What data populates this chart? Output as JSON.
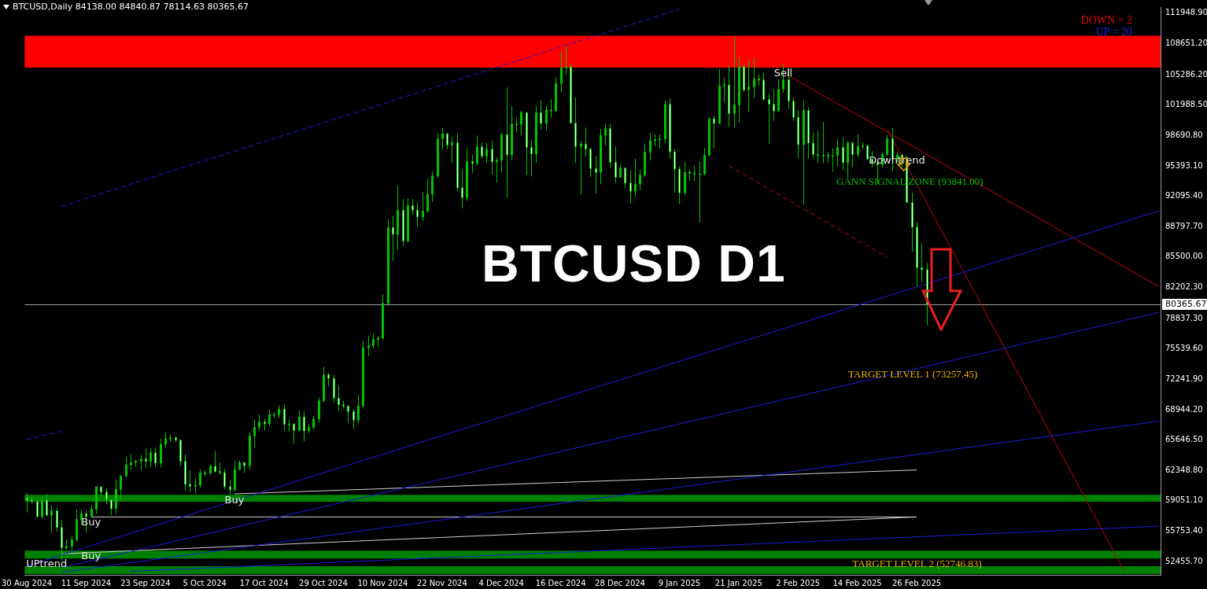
{
  "chart_data": {
    "type": "candlestick",
    "title": "BTCUSD,Daily 84138.00 84840.87 78114.63 80365.67",
    "xlim": [
      "2024-08-29T14:00",
      "2025-04-16T08:00"
    ],
    "xticks": [
      {
        "value": "2024-08-30",
        "label": "30 Aug 2024"
      },
      {
        "value": "2024-09-11",
        "label": "11 Sep 2024"
      },
      {
        "value": "2024-09-23",
        "label": "23 Sep 2024"
      },
      {
        "value": "2024-10-05",
        "label": "5 Oct 2024"
      },
      {
        "value": "2024-10-17",
        "label": "17 Oct 2024"
      },
      {
        "value": "2024-10-29",
        "label": "29 Oct 2024"
      },
      {
        "value": "2024-11-10",
        "label": "10 Nov 2024"
      },
      {
        "value": "2024-11-22",
        "label": "22 Nov 2024"
      },
      {
        "value": "2024-12-04",
        "label": "4 Dec 2024"
      },
      {
        "value": "2024-12-16",
        "label": "16 Dec 2024"
      },
      {
        "value": "2024-12-28",
        "label": "28 Dec 2024"
      },
      {
        "value": "2025-01-09",
        "label": "9 Jan 2025"
      },
      {
        "value": "2025-01-21",
        "label": "21 Jan 2025"
      },
      {
        "value": "2025-02-02",
        "label": "2 Feb 2025"
      },
      {
        "value": "2025-02-14",
        "label": "14 Feb 2025"
      },
      {
        "value": "2025-02-26",
        "label": "26 Feb 2025"
      }
    ],
    "ylim": [
      51020,
      112620
    ],
    "yticks": [
      {
        "value": 111948.9,
        "label": "111948.90"
      },
      {
        "value": 108651.2,
        "label": "108651.20"
      },
      {
        "value": 105286.2,
        "label": "105286.20"
      },
      {
        "value": 101988.5,
        "label": "101988.50"
      },
      {
        "value": 98690.8,
        "label": "98690.80"
      },
      {
        "value": 95393.1,
        "label": "95393.10"
      },
      {
        "value": 92095.4,
        "label": "92095.40"
      },
      {
        "value": 88797.7,
        "label": "88797.70"
      },
      {
        "value": 85500,
        "label": "85500.00"
      },
      {
        "value": 82202.3,
        "label": "82202.30"
      },
      {
        "value": 78837.3,
        "label": "78837.30"
      },
      {
        "value": 75539.6,
        "label": "75539.60"
      },
      {
        "value": 72241.9,
        "label": "72241.90"
      },
      {
        "value": 68944.2,
        "label": "68944.20"
      },
      {
        "value": 65646.5,
        "label": "65646.50"
      },
      {
        "value": 62348.8,
        "label": "62348.80"
      },
      {
        "value": 59051.1,
        "label": "59051.10"
      },
      {
        "value": 55753.4,
        "label": "55753.40"
      },
      {
        "value": 52455.7,
        "label": "52455.70"
      }
    ],
    "series": [
      {
        "color": "#00c000",
        "x": [
          "2024-08-30",
          "2024-08-31",
          "2024-09-01",
          "2024-09-02",
          "2024-09-03",
          "2024-09-04",
          "2024-09-05",
          "2024-09-06",
          "2024-09-07",
          "2024-09-08",
          "2024-09-09",
          "2024-09-10",
          "2024-09-11",
          "2024-09-12",
          "2024-09-13",
          "2024-09-14",
          "2024-09-15",
          "2024-09-16",
          "2024-09-17",
          "2024-09-18",
          "2024-09-19",
          "2024-09-20",
          "2024-09-21",
          "2024-09-22",
          "2024-09-23",
          "2024-09-24",
          "2024-09-25",
          "2024-09-26",
          "2024-09-27",
          "2024-09-28",
          "2024-09-29",
          "2024-09-30",
          "2024-10-01",
          "2024-10-02",
          "2024-10-03",
          "2024-10-04",
          "2024-10-05",
          "2024-10-06",
          "2024-10-07",
          "2024-10-08",
          "2024-10-09",
          "2024-10-10",
          "2024-10-11",
          "2024-10-12",
          "2024-10-13",
          "2024-10-14",
          "2024-10-15",
          "2024-10-16",
          "2024-10-17",
          "2024-10-18",
          "2024-10-19",
          "2024-10-20",
          "2024-10-21",
          "2024-10-22",
          "2024-10-23",
          "2024-10-24",
          "2024-10-25",
          "2024-10-26",
          "2024-10-27",
          "2024-10-28",
          "2024-10-29",
          "2024-10-30",
          "2024-10-31",
          "2024-11-01",
          "2024-11-02",
          "2024-11-03",
          "2024-11-04",
          "2024-11-05",
          "2024-11-06",
          "2024-11-07",
          "2024-11-08",
          "2024-11-09",
          "2024-11-10",
          "2024-11-11",
          "2024-11-12",
          "2024-11-13",
          "2024-11-14",
          "2024-11-15",
          "2024-11-16",
          "2024-11-17",
          "2024-11-18",
          "2024-11-19",
          "2024-11-20",
          "2024-11-21",
          "2024-11-22",
          "2024-11-23",
          "2024-11-24",
          "2024-11-25",
          "2024-11-26",
          "2024-11-27",
          "2024-11-28",
          "2024-11-29",
          "2024-11-30",
          "2024-12-01",
          "2024-12-02",
          "2024-12-03",
          "2024-12-04",
          "2024-12-05",
          "2024-12-06",
          "2024-12-07",
          "2024-12-08",
          "2024-12-09",
          "2024-12-10",
          "2024-12-11",
          "2024-12-12",
          "2024-12-13",
          "2024-12-14",
          "2024-12-15",
          "2024-12-16",
          "2024-12-17",
          "2024-12-18",
          "2024-12-19",
          "2024-12-20",
          "2024-12-21",
          "2024-12-22",
          "2024-12-23",
          "2024-12-24",
          "2024-12-25",
          "2024-12-26",
          "2024-12-27",
          "2024-12-28",
          "2024-12-29",
          "2024-12-30",
          "2024-12-31",
          "2025-01-01",
          "2025-01-02",
          "2025-01-03",
          "2025-01-04",
          "2025-01-05",
          "2025-01-06",
          "2025-01-07",
          "2025-01-08",
          "2025-01-09",
          "2025-01-10",
          "2025-01-11",
          "2025-01-12",
          "2025-01-13",
          "2025-01-14",
          "2025-01-15",
          "2025-01-16",
          "2025-01-17",
          "2025-01-18",
          "2025-01-19",
          "2025-01-20",
          "2025-01-21",
          "2025-01-22",
          "2025-01-23",
          "2025-01-24",
          "2025-01-25",
          "2025-01-26",
          "2025-01-27",
          "2025-01-28",
          "2025-01-29",
          "2025-01-30",
          "2025-01-31",
          "2025-02-01",
          "2025-02-02",
          "2025-02-03",
          "2025-02-04",
          "2025-02-05",
          "2025-02-06",
          "2025-02-07",
          "2025-02-08",
          "2025-02-09",
          "2025-02-10",
          "2025-02-11",
          "2025-02-12",
          "2025-02-13",
          "2025-02-14",
          "2025-02-15",
          "2025-02-16",
          "2025-02-17",
          "2025-02-18",
          "2025-02-19",
          "2025-02-20",
          "2025-02-21",
          "2025-02-22",
          "2025-02-23",
          "2025-02-24",
          "2025-02-25",
          "2025-02-26",
          "2025-02-27",
          "2025-02-28"
        ],
        "ohlc": [
          [
            59370,
            59850,
            57800,
            59120
          ],
          [
            59120,
            59450,
            58750,
            58970
          ],
          [
            58970,
            59060,
            57220,
            57330
          ],
          [
            57330,
            59430,
            57130,
            59120
          ],
          [
            59120,
            59820,
            57420,
            57480
          ],
          [
            57480,
            58520,
            55600,
            57970
          ],
          [
            57970,
            58300,
            55700,
            56160
          ],
          [
            56160,
            56980,
            52550,
            53950
          ],
          [
            53950,
            54850,
            53750,
            54140
          ],
          [
            54140,
            55300,
            53650,
            54840
          ],
          [
            54840,
            58100,
            54600,
            57020
          ],
          [
            57020,
            58040,
            56400,
            57650
          ],
          [
            57650,
            57990,
            55550,
            57340
          ],
          [
            57340,
            58580,
            57320,
            58130
          ],
          [
            58130,
            60650,
            57650,
            60570
          ],
          [
            60570,
            60650,
            59500,
            60000
          ],
          [
            60000,
            60380,
            58700,
            59180
          ],
          [
            59180,
            59210,
            57500,
            58210
          ],
          [
            58210,
            61330,
            57610,
            60310
          ],
          [
            60310,
            61790,
            59200,
            61760
          ],
          [
            61760,
            63850,
            61600,
            62950
          ],
          [
            62950,
            64120,
            62400,
            63200
          ],
          [
            63200,
            63560,
            62760,
            63350
          ],
          [
            63350,
            64000,
            62400,
            63580
          ],
          [
            63580,
            64740,
            62620,
            63340
          ],
          [
            63340,
            64800,
            62720,
            64280
          ],
          [
            64280,
            64820,
            62710,
            63140
          ],
          [
            63140,
            65800,
            62690,
            65180
          ],
          [
            65180,
            66480,
            64800,
            65790
          ],
          [
            65790,
            66260,
            65430,
            65890
          ],
          [
            65890,
            66080,
            65430,
            65640
          ],
          [
            65640,
            65650,
            62860,
            63330
          ],
          [
            63330,
            64120,
            60170,
            60840
          ],
          [
            60840,
            62370,
            59980,
            60630
          ],
          [
            60630,
            61470,
            59830,
            60750
          ],
          [
            60750,
            62480,
            60460,
            62090
          ],
          [
            62090,
            62370,
            61680,
            62060
          ],
          [
            62060,
            62970,
            61840,
            62820
          ],
          [
            62820,
            64470,
            62140,
            62220
          ],
          [
            62220,
            63180,
            61840,
            62130
          ],
          [
            62130,
            62540,
            60320,
            60580
          ],
          [
            60580,
            61330,
            58890,
            60270
          ],
          [
            60270,
            63390,
            60050,
            62450
          ],
          [
            62450,
            63460,
            62440,
            63190
          ],
          [
            63190,
            63290,
            62080,
            62850
          ],
          [
            62850,
            66480,
            62440,
            66080
          ],
          [
            66080,
            67880,
            64810,
            67040
          ],
          [
            67040,
            68400,
            66700,
            67610
          ],
          [
            67610,
            67930,
            66680,
            67400
          ],
          [
            67400,
            68970,
            67150,
            68420
          ],
          [
            68420,
            68670,
            68030,
            68360
          ],
          [
            68360,
            69370,
            68000,
            69000
          ],
          [
            69000,
            69500,
            66570,
            67370
          ],
          [
            67370,
            67830,
            66590,
            67380
          ],
          [
            67380,
            67450,
            65260,
            66680
          ],
          [
            66680,
            68850,
            66510,
            68170
          ],
          [
            68170,
            68770,
            65520,
            66640
          ],
          [
            66640,
            67400,
            66440,
            67010
          ],
          [
            67010,
            68250,
            66810,
            67930
          ],
          [
            67930,
            70230,
            67530,
            69900
          ],
          [
            69900,
            73570,
            69740,
            72720
          ],
          [
            72720,
            72950,
            71460,
            72340
          ],
          [
            72340,
            72690,
            69690,
            70210
          ],
          [
            70210,
            71590,
            68790,
            69480
          ],
          [
            69480,
            69930,
            69050,
            69350
          ],
          [
            69350,
            69380,
            67470,
            68740
          ],
          [
            68740,
            69000,
            66820,
            67810
          ],
          [
            67810,
            70530,
            67440,
            69350
          ],
          [
            69350,
            76400,
            69070,
            75640
          ],
          [
            75640,
            76950,
            74760,
            75900
          ],
          [
            75900,
            77200,
            75590,
            76540
          ],
          [
            76540,
            76930,
            75730,
            76700
          ],
          [
            76700,
            81480,
            76500,
            80470
          ],
          [
            80470,
            89600,
            80220,
            88700
          ],
          [
            88700,
            89960,
            85100,
            87960
          ],
          [
            87960,
            93250,
            86260,
            90580
          ],
          [
            90580,
            91770,
            86710,
            87250
          ],
          [
            87250,
            91850,
            87110,
            91070
          ],
          [
            91070,
            91790,
            90080,
            90600
          ],
          [
            90600,
            91440,
            88750,
            89850
          ],
          [
            89850,
            92580,
            89390,
            90460
          ],
          [
            90460,
            94000,
            90400,
            92310
          ],
          [
            92310,
            94800,
            91520,
            94290
          ],
          [
            94290,
            98980,
            94090,
            98320
          ],
          [
            98320,
            99500,
            97180,
            98890
          ],
          [
            98890,
            98900,
            97210,
            97670
          ],
          [
            97670,
            98530,
            95760,
            97900
          ],
          [
            97900,
            98870,
            92600,
            93010
          ],
          [
            93010,
            94990,
            90790,
            91960
          ],
          [
            91960,
            97330,
            91600,
            95860
          ],
          [
            95860,
            96600,
            94640,
            95640
          ],
          [
            95640,
            98680,
            95400,
            97460
          ],
          [
            97460,
            97900,
            96160,
            96450
          ],
          [
            96450,
            97860,
            95720,
            97190
          ],
          [
            97190,
            98160,
            94420,
            95840
          ],
          [
            95840,
            96300,
            93580,
            96000
          ],
          [
            96000,
            99000,
            94670,
            98770
          ],
          [
            98770,
            103900,
            91900,
            96590
          ],
          [
            96590,
            101880,
            95980,
            99920
          ],
          [
            99920,
            100550,
            99020,
            99920
          ],
          [
            99920,
            101340,
            98700,
            101170
          ],
          [
            101170,
            101200,
            94380,
            97400
          ],
          [
            97400,
            98270,
            94260,
            96680
          ],
          [
            96680,
            101900,
            95700,
            101170
          ],
          [
            101170,
            102540,
            99340,
            100000
          ],
          [
            100000,
            101900,
            99230,
            101460
          ],
          [
            101460,
            102600,
            100630,
            101370
          ],
          [
            101370,
            105050,
            101230,
            104300
          ],
          [
            104300,
            107780,
            103330,
            106030
          ],
          [
            106030,
            108350,
            105320,
            106140
          ],
          [
            106140,
            106470,
            100000,
            100040
          ],
          [
            100040,
            102800,
            95700,
            97490
          ],
          [
            97490,
            98130,
            92230,
            97760
          ],
          [
            97760,
            99540,
            96400,
            97220
          ],
          [
            97220,
            97350,
            94200,
            95100
          ],
          [
            95100,
            96450,
            92400,
            94690
          ],
          [
            94690,
            99400,
            93400,
            98700
          ],
          [
            98700,
            99960,
            97600,
            99450
          ],
          [
            99450,
            99960,
            95150,
            95800
          ],
          [
            95800,
            97500,
            93500,
            94160
          ],
          [
            94160,
            95500,
            94100,
            95160
          ],
          [
            95160,
            95200,
            93020,
            93530
          ],
          [
            93530,
            94900,
            91310,
            92640
          ],
          [
            92640,
            96150,
            92000,
            93430
          ],
          [
            93430,
            94950,
            92750,
            94400
          ],
          [
            94400,
            97800,
            94200,
            96890
          ],
          [
            96890,
            98950,
            96000,
            98110
          ],
          [
            98110,
            98750,
            97520,
            98240
          ],
          [
            98240,
            98800,
            97260,
            98320
          ],
          [
            98320,
            102480,
            97900,
            102080
          ],
          [
            102080,
            102710,
            96150,
            96920
          ],
          [
            96920,
            97250,
            92510,
            95040
          ],
          [
            95040,
            95350,
            91250,
            92480
          ],
          [
            92480,
            95850,
            92200,
            94700
          ],
          [
            94700,
            94990,
            93830,
            94570
          ],
          [
            94570,
            95380,
            93700,
            94490
          ],
          [
            94490,
            95900,
            89260,
            94520
          ],
          [
            94520,
            97350,
            94320,
            96530
          ],
          [
            96530,
            100700,
            96480,
            100500
          ],
          [
            100500,
            100850,
            97300,
            99990
          ],
          [
            99990,
            105900,
            99950,
            104080
          ],
          [
            104080,
            104950,
            102300,
            104170
          ],
          [
            104170,
            106300,
            99600,
            101090
          ],
          [
            101090,
            109350,
            99550,
            102020
          ],
          [
            102020,
            107200,
            100100,
            106150
          ],
          [
            106150,
            106350,
            103350,
            103650
          ],
          [
            103650,
            106850,
            101250,
            103960
          ],
          [
            103960,
            107100,
            102750,
            104820
          ],
          [
            104820,
            105300,
            104100,
            104710
          ],
          [
            104710,
            105500,
            102520,
            102590
          ],
          [
            102590,
            103200,
            97800,
            102080
          ],
          [
            102080,
            103750,
            100280,
            101330
          ],
          [
            101330,
            104800,
            101300,
            103730
          ],
          [
            103730,
            106450,
            103330,
            104740
          ],
          [
            104740,
            106020,
            101550,
            102410
          ],
          [
            102410,
            102750,
            100300,
            100650
          ],
          [
            100650,
            101450,
            96200,
            97690
          ],
          [
            97690,
            102500,
            91200,
            101400
          ],
          [
            101400,
            101730,
            96200,
            97870
          ],
          [
            97870,
            99000,
            96200,
            96620
          ],
          [
            96620,
            99200,
            95700,
            96550
          ],
          [
            96550,
            100150,
            95650,
            96530
          ],
          [
            96530,
            96900,
            95700,
            96480
          ],
          [
            96480,
            97300,
            94750,
            96500
          ],
          [
            96500,
            98300,
            95300,
            97400
          ],
          [
            97400,
            98500,
            94900,
            95750
          ],
          [
            95750,
            98100,
            94100,
            97870
          ],
          [
            97870,
            98000,
            95250,
            96620
          ],
          [
            96620,
            98800,
            96350,
            97510
          ],
          [
            97510,
            97950,
            97250,
            97570
          ],
          [
            97570,
            97700,
            96050,
            96120
          ],
          [
            96120,
            97000,
            95250,
            95770
          ],
          [
            95770,
            96000,
            93400,
            95540
          ],
          [
            95540,
            96850,
            95200,
            96630
          ],
          [
            96630,
            98750,
            96450,
            98330
          ],
          [
            98330,
            99500,
            94850,
            96130
          ],
          [
            96130,
            96900,
            95750,
            96580
          ],
          [
            96580,
            96650,
            95250,
            96270
          ],
          [
            96270,
            96500,
            91350,
            91420
          ],
          [
            91420,
            92450,
            86100,
            88740
          ],
          [
            88740,
            89300,
            82300,
            84350
          ],
          [
            84350,
            87000,
            82800,
            84138
          ],
          [
            84138,
            84840.87,
            78114.63,
            80365.67
          ]
        ],
        "colors": [
          "#ffffff",
          "#ffffff",
          "#ffffff",
          "#00c000",
          "#ffffff",
          "#00c000",
          "#ffffff",
          "#ffffff",
          "#00c000",
          "#00c000",
          "#00c000",
          "#00c000",
          "#ffffff",
          "#00c000",
          "#00c000",
          "#ffffff",
          "#ffffff",
          "#ffffff",
          "#00c000",
          "#00c000",
          "#00c000",
          "#00c000",
          "#00c000",
          "#00c000",
          "#ffffff",
          "#00c000",
          "#ffffff",
          "#00c000",
          "#00c000",
          "#00c000",
          "#ffffff",
          "#ffffff",
          "#ffffff",
          "#ffffff",
          "#00c000",
          "#00c000",
          "#ffffff",
          "#00c000",
          "#ffffff",
          "#ffffff",
          "#ffffff",
          "#ffffff",
          "#00c000",
          "#00c000",
          "#ffffff",
          "#00c000",
          "#00c000",
          "#00c000",
          "#ffffff",
          "#00c000",
          "#ffffff",
          "#00c000",
          "#ffffff",
          "#00c000",
          "#ffffff",
          "#00c000",
          "#ffffff",
          "#00c000",
          "#00c000",
          "#00c000",
          "#00c000",
          "#ffffff",
          "#ffffff",
          "#ffffff",
          "#ffffff",
          "#ffffff",
          "#ffffff",
          "#00c000",
          "#00c000",
          "#00c000",
          "#00c000",
          "#00c000",
          "#00c000",
          "#00c000",
          "#ffffff",
          "#00c000",
          "#ffffff",
          "#00c000",
          "#ffffff",
          "#ffffff",
          "#00c000",
          "#00c000",
          "#00c000",
          "#00c000",
          "#00c000",
          "#ffffff",
          "#00c000",
          "#ffffff",
          "#ffffff",
          "#00c000",
          "#ffffff",
          "#00c000",
          "#ffffff",
          "#00c000",
          "#ffffff",
          "#00c000",
          "#00c000",
          "#ffffff",
          "#00c000",
          "#00c000",
          "#00c000",
          "#ffffff",
          "#ffffff",
          "#00c000",
          "#ffffff",
          "#00c000",
          "#ffffff",
          "#00c000",
          "#00c000",
          "#00c000",
          "#ffffff",
          "#ffffff",
          "#00c000",
          "#ffffff",
          "#ffffff",
          "#ffffff",
          "#00c000",
          "#00c000",
          "#ffffff",
          "#ffffff",
          "#00c000",
          "#ffffff",
          "#ffffff",
          "#00c000",
          "#00c000",
          "#00c000",
          "#00c000",
          "#00c000",
          "#00c000",
          "#00c000",
          "#ffffff",
          "#ffffff",
          "#ffffff",
          "#00c000",
          "#ffffff",
          "#ffffff",
          "#00c000",
          "#00c000",
          "#00c000",
          "#ffffff",
          "#00c000",
          "#00c000",
          "#ffffff",
          "#00c000",
          "#00c000",
          "#ffffff",
          "#00c000",
          "#00c000",
          "#ffffff",
          "#ffffff",
          "#ffffff",
          "#ffffff",
          "#00c000",
          "#00c000",
          "#ffffff",
          "#ffffff",
          "#ffffff",
          "#00c000",
          "#ffffff",
          "#ffffff",
          "#ffffff",
          "#ffffff",
          "#ffffff",
          "#00c000",
          "#00c000",
          "#ffffff",
          "#00c000",
          "#ffffff",
          "#00c000",
          "#00c000",
          "#ffffff",
          "#ffffff",
          "#ffffff",
          "#00c000",
          "#00c000",
          "#ffffff",
          "#00c000",
          "#ffffff",
          "#ffffff",
          "#ffffff",
          "#ffffff",
          "#ffffff",
          "#ffffff"
        ]
      },
      {
        "type": "line",
        "color": "#1a1ad8",
        "line_style": "dashed",
        "x": [
          "2024-09-06",
          "2025-01-09"
        ],
        "values": [
          91000,
          112400
        ]
      },
      {
        "type": "line",
        "color": "#1a1ad8",
        "line_style": "dashed",
        "x": [
          "2024-08-30",
          "2024-09-06"
        ],
        "values": [
          65700,
          66600
        ]
      },
      {
        "type": "line",
        "color": "#1a1ad8",
        "x": [
          "2024-08-30",
          "2025-04-16"
        ],
        "values": [
          52000,
          90500
        ]
      },
      {
        "type": "line",
        "color": "#1a1ad8",
        "x": [
          "2024-09-06",
          "2025-04-16"
        ],
        "values": [
          51800,
          79500
        ]
      },
      {
        "type": "line",
        "color": "#1a1ad8",
        "x": [
          "2024-09-06",
          "2025-04-16"
        ],
        "values": [
          51300,
          67700
        ]
      },
      {
        "type": "line",
        "color": "#1a1ad8",
        "x": [
          "2024-09-20",
          "2025-04-16"
        ],
        "values": [
          51400,
          56300
        ]
      },
      {
        "type": "line",
        "color": "#c00000",
        "x": [
          "2025-01-30",
          "2025-04-16"
        ],
        "values": [
          105500,
          82300
        ]
      },
      {
        "type": "line",
        "color": "#c00000",
        "x": [
          "2025-02-20",
          "2025-04-09"
        ],
        "values": [
          99400,
          51400
        ]
      },
      {
        "type": "line",
        "color": "#c00000",
        "line_style": "dashed",
        "x": [
          "2025-01-19",
          "2025-02-20"
        ],
        "values": [
          95400,
          85500
        ]
      },
      {
        "type": "line",
        "color": "#d0d0d0",
        "x": [
          "2024-10-11",
          "2025-02-26"
        ],
        "values": [
          59800,
          62400
        ]
      },
      {
        "type": "line",
        "color": "#d0d0d0",
        "x": [
          "2024-09-12",
          "2025-02-26"
        ],
        "values": [
          57300,
          57300
        ]
      },
      {
        "type": "line",
        "color": "#d0d0d0",
        "x": [
          "2024-09-06",
          "2025-02-26"
        ],
        "values": [
          53300,
          57300
        ]
      }
    ],
    "bands": [
      {
        "axis": "y",
        "from": 106050,
        "to": 109500,
        "color": "#ff0000"
      },
      {
        "axis": "y",
        "from": 58950,
        "to": 59700,
        "color": "#008000"
      },
      {
        "axis": "y",
        "from": 52800,
        "to": 53640,
        "color": "#008000"
      },
      {
        "axis": "y",
        "from": 51100,
        "to": 51950,
        "color": "#008000"
      }
    ],
    "ref_lines": [
      {
        "axis": "y",
        "value": 80365.67,
        "label": "80365.67",
        "color": "#a0a0a0"
      }
    ],
    "annotations": [
      "BTCUSD D1",
      "DOWN = 2",
      "UP = 20",
      "GANN SIGNAL ZONE (93841.00)",
      "TARGET LEVEL 1 (73257.45)",
      {
        "text": "Sell",
        "x": "2025-01-30",
        "y": 106050
      },
      {
        "text": "Buy",
        "x": "2024-10-11",
        "y": 59700
      },
      {
        "text": "Buy",
        "x": "2024-09-12",
        "y": 57300
      },
      {
        "text": "UPtrend",
        "x": "2024-09-03",
        "y": 52800
      },
      {
        "text": "Buy",
        "x": "2024-09-12",
        "y": 53640
      },
      {
        "text": "Downtrend",
        "x": "2025-02-22",
        "y": 96600
      },
      {
        "text": "TARGET LEVEL 2 (52746.83)",
        "x": "2025-02-13",
        "y": 52746.83
      }
    ]
  }
}
